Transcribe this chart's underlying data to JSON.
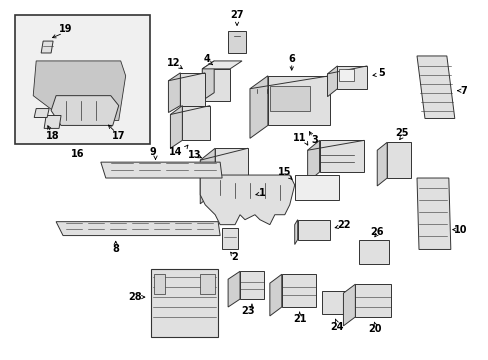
{
  "bg": "#ffffff",
  "fw": 4.89,
  "fh": 3.6,
  "dpi": 100,
  "lc": "#333333",
  "fc": "#e8e8e8",
  "tc": "#000000",
  "fs": 7.0
}
